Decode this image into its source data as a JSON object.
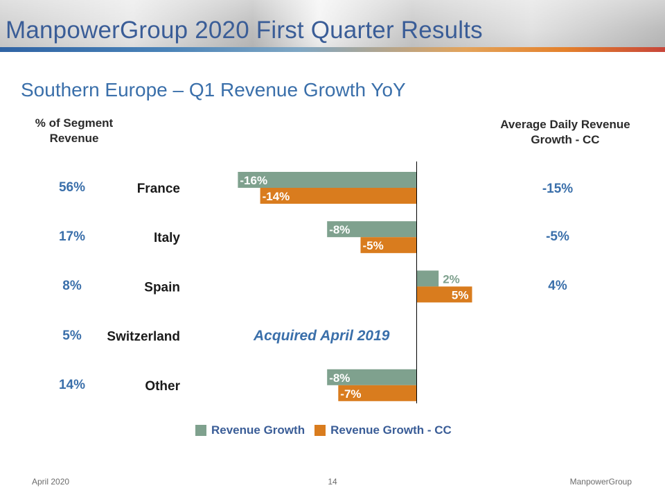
{
  "slide": {
    "title": "ManpowerGroup 2020 First Quarter Results",
    "subtitle": "Southern Europe – Q1 Revenue Growth YoY",
    "left_header": "% of Segment Revenue",
    "right_header": "Average Daily Revenue Growth - CC",
    "note": "Acquired April 2019",
    "footer_left": "April 2020",
    "footer_center": "14",
    "footer_right": "ManpowerGroup"
  },
  "rows": [
    {
      "label": "France",
      "segment_pct": "56%",
      "adr_growth_cc": "-15%"
    },
    {
      "label": "Italy",
      "segment_pct": "17%",
      "adr_growth_cc": "-5%"
    },
    {
      "label": "Spain",
      "segment_pct": "8%",
      "adr_growth_cc": "4%"
    },
    {
      "label": "Switzerland",
      "segment_pct": "5%",
      "adr_growth_cc": ""
    },
    {
      "label": "Other",
      "segment_pct": "14%",
      "adr_growth_cc": ""
    }
  ],
  "colors": {
    "revenue_growth": "#7fa18e",
    "revenue_growth_cc": "#d97c1e",
    "accent_blue": "#3a6faa"
  },
  "chart_data": {
    "type": "bar",
    "orientation": "horizontal",
    "categories": [
      "France",
      "Italy",
      "Spain",
      "Switzerland",
      "Other"
    ],
    "series": [
      {
        "name": "Revenue Growth",
        "values": [
          -16,
          -8,
          2,
          null,
          -8
        ],
        "labels": [
          "-16%",
          "-8%",
          "2%",
          "",
          "-8%"
        ]
      },
      {
        "name": "Revenue Growth - CC",
        "values": [
          -14,
          -5,
          5,
          null,
          -7
        ],
        "labels": [
          "-14%",
          "-5%",
          "5%",
          "",
          "-7%"
        ]
      }
    ],
    "legend": "bottom"
  }
}
